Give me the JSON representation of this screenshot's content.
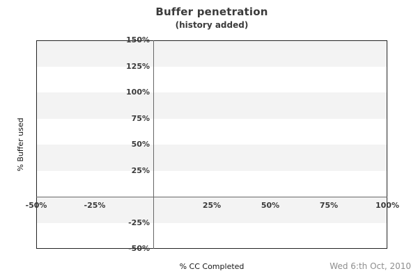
{
  "header": {
    "title": "Buffer penetration",
    "subtitle": "(history added)"
  },
  "footer": {
    "date": "Wed 6:th Oct, 2010"
  },
  "chart_data": {
    "type": "line",
    "title": "Buffer penetration",
    "subtitle": "(history added)",
    "xlabel": "% CC Completed",
    "ylabel": "% Buffer used",
    "xlim": [
      -50,
      100
    ],
    "ylim": [
      -50,
      150
    ],
    "x_ticks": [
      {
        "value": -50,
        "label": "-50%"
      },
      {
        "value": -25,
        "label": "-25%"
      },
      {
        "value": 25,
        "label": "25%"
      },
      {
        "value": 50,
        "label": "50%"
      },
      {
        "value": 75,
        "label": "75%"
      },
      {
        "value": 100,
        "label": "100%"
      }
    ],
    "y_ticks": [
      {
        "value": 150,
        "label": "150%"
      },
      {
        "value": 125,
        "label": "125%"
      },
      {
        "value": 100,
        "label": "100%"
      },
      {
        "value": 75,
        "label": "75%"
      },
      {
        "value": 50,
        "label": "50%"
      },
      {
        "value": 25,
        "label": "25%"
      },
      {
        "value": -25,
        "label": "-25%"
      },
      {
        "value": -50,
        "label": "-50%"
      }
    ],
    "series": [],
    "band_step": 25,
    "legend": "none",
    "grid": "no gridlines; alternating gray/white horizontal bands every 25% starting gray at top; axis lines drawn at x=0 and y=0 crossing at origin; tick labels placed along the zero axes, no label at 0"
  },
  "colors": {
    "background": "#ffffff",
    "band_gray": "#f3f3f3",
    "band_white": "#ffffff",
    "plot_border": "#222222",
    "axis_line": "#666666",
    "title_text": "#3b3b3b",
    "tick_text": "#3a3a3a",
    "axis_title_text": "#141414",
    "date_text": "#8e8e8e"
  }
}
